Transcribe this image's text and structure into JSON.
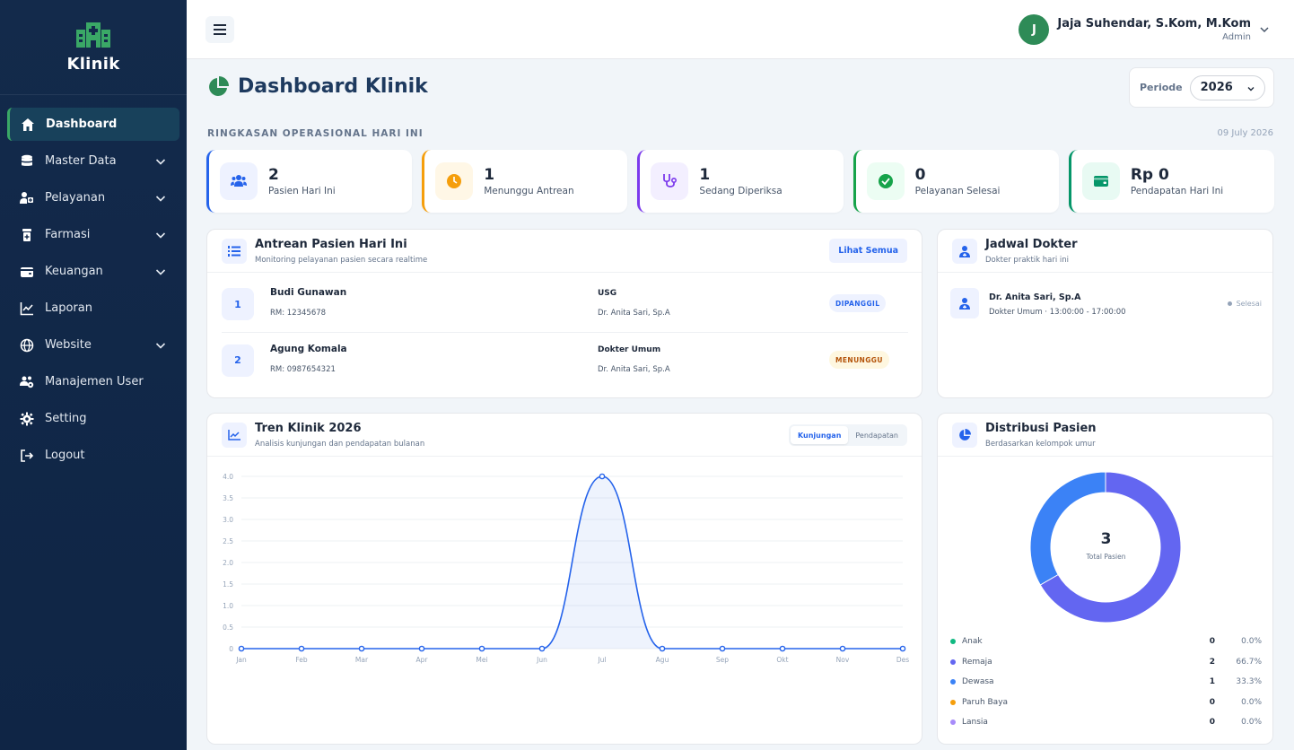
{
  "brand": {
    "title": "Klinik"
  },
  "sidebar": {
    "items": [
      {
        "label": "Dashboard",
        "icon": "home-icon",
        "active": true,
        "expandable": false
      },
      {
        "label": "Master Data",
        "icon": "database-icon",
        "active": false,
        "expandable": true
      },
      {
        "label": "Pelayanan",
        "icon": "user-medical-icon",
        "active": false,
        "expandable": true
      },
      {
        "label": "Farmasi",
        "icon": "prescription-bottle-icon",
        "active": false,
        "expandable": true
      },
      {
        "label": "Keuangan",
        "icon": "wallet-icon",
        "active": false,
        "expandable": true
      },
      {
        "label": "Laporan",
        "icon": "chart-line-icon",
        "active": false,
        "expandable": false
      },
      {
        "label": "Website",
        "icon": "globe-icon",
        "active": false,
        "expandable": true
      },
      {
        "label": "Manajemen User",
        "icon": "users-cog-icon",
        "active": false,
        "expandable": false
      },
      {
        "label": "Setting",
        "icon": "gear-icon",
        "active": false,
        "expandable": false
      },
      {
        "label": "Logout",
        "icon": "logout-icon",
        "active": false,
        "expandable": false
      }
    ]
  },
  "topbar": {
    "user": {
      "initial": "J",
      "name": "Jaja Suhendar, S.Kom, M.Kom",
      "role": "Admin"
    }
  },
  "page": {
    "title": "Dashboard Klinik",
    "periode_label": "Periode",
    "periode_value": "2026",
    "section_label": "RINGKASAN OPERASIONAL HARI INI",
    "section_date": "09 July 2026"
  },
  "stats": [
    {
      "value": "2",
      "label": "Pasien Hari Ini",
      "accent": "#2563eb",
      "bg": "#eef2ff",
      "icon": "users-icon"
    },
    {
      "value": "1",
      "label": "Menunggu Antrean",
      "accent": "#f59e0b",
      "bg": "#fff7e6",
      "icon": "clock-icon"
    },
    {
      "value": "1",
      "label": "Sedang Diperiksa",
      "accent": "#7c3aed",
      "bg": "#f3efff",
      "icon": "stethoscope-icon"
    },
    {
      "value": "0",
      "label": "Pelayanan Selesai",
      "accent": "#16a34a",
      "bg": "#ecfdf3",
      "icon": "check-circle-icon"
    },
    {
      "value": "Rp 0",
      "label": "Pendapatan Hari Ini",
      "accent": "#059669",
      "bg": "#e8faf3",
      "icon": "wallet-icon"
    }
  ],
  "queue": {
    "title": "Antrean Pasien Hari Ini",
    "subtitle": "Monitoring pelayanan pasien secara realtime",
    "view_all": "Lihat Semua",
    "rows": [
      {
        "number": "1",
        "name": "Budi Gunawan",
        "rm": "RM: 12345678",
        "service": "USG",
        "doctor": "Dr. Anita Sari, Sp.A",
        "status": "DIPANGGIL",
        "status_color": "#2563eb",
        "status_bg": "#eef2ff"
      },
      {
        "number": "2",
        "name": "Agung Komala",
        "rm": "RM: 0987654321",
        "service": "Dokter Umum",
        "doctor": "Dr. Anita Sari, Sp.A",
        "status": "MENUNGGU",
        "status_color": "#b45309",
        "status_bg": "#fef7e0"
      }
    ]
  },
  "schedule": {
    "title": "Jadwal Dokter",
    "subtitle": "Dokter praktik hari ini",
    "doctors": [
      {
        "name": "Dr. Anita Sari, Sp.A",
        "detail": "Dokter Umum · 13:00:00 - 17:00:00",
        "status": "Selesai"
      }
    ]
  },
  "trend": {
    "title": "Tren Klinik 2026",
    "subtitle": "Analisis kunjungan dan pendapatan bulanan",
    "tabs": [
      "Kunjungan",
      "Pendapatan"
    ],
    "active_tab": 0
  },
  "distribution": {
    "title": "Distribusi Pasien",
    "subtitle": "Berdasarkan kelompok umur",
    "total": "3",
    "total_label": "Total Pasien",
    "groups": [
      {
        "label": "Anak",
        "count": "0",
        "pct": "0.0%",
        "color": "#10b981"
      },
      {
        "label": "Remaja",
        "count": "2",
        "pct": "66.7%",
        "color": "#6366f1"
      },
      {
        "label": "Dewasa",
        "count": "1",
        "pct": "33.3%",
        "color": "#3b82f6"
      },
      {
        "label": "Paruh Baya",
        "count": "0",
        "pct": "0.0%",
        "color": "#f59e0b"
      },
      {
        "label": "Lansia",
        "count": "0",
        "pct": "0.0%",
        "color": "#a78bfa"
      }
    ]
  },
  "chart_data": {
    "type": "line",
    "categories": [
      "Jan",
      "Feb",
      "Mar",
      "Apr",
      "Mei",
      "Jun",
      "Jul",
      "Agu",
      "Sep",
      "Okt",
      "Nov",
      "Des"
    ],
    "values": [
      0,
      0,
      0,
      0,
      0,
      0,
      4,
      0,
      0,
      0,
      0,
      0
    ],
    "yticks": [
      "0",
      "0.5",
      "1.0",
      "1.5",
      "2.0",
      "2.5",
      "3.0",
      "3.5",
      "4.0"
    ],
    "ylim": [
      0,
      4
    ],
    "grid": true,
    "color": "#2563eb"
  }
}
